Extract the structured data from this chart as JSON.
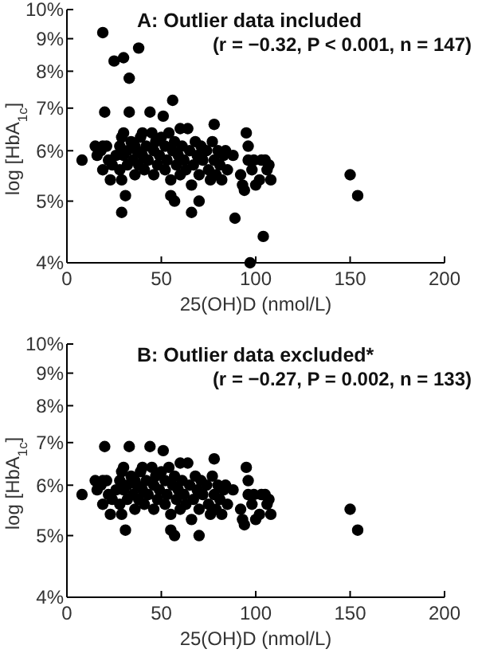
{
  "chart_data": [
    {
      "type": "scatter",
      "title": "A:  Outlier data included",
      "subtitle": "(r = −0.32, P < 0.001, n = 147)",
      "xlabel": "25(OH)D (nmol/L)",
      "ylabel": "log [HbA$_{1c}$]",
      "color": "#000000",
      "marker": "circle",
      "log": "y",
      "xlim": [
        0,
        200
      ],
      "xticks": [
        0,
        50,
        100,
        150,
        200
      ],
      "ylim": [
        4,
        10
      ],
      "yticks": [
        {
          "value": 4,
          "label": "4%"
        },
        {
          "value": 5,
          "label": "5%"
        },
        {
          "value": 6,
          "label": "6%"
        },
        {
          "value": 7,
          "label": "7%"
        },
        {
          "value": 8,
          "label": "8%"
        },
        {
          "value": 9,
          "label": "9%"
        },
        {
          "value": 10,
          "label": "10%"
        }
      ],
      "x": [
        8,
        15,
        16,
        18,
        19,
        19,
        20,
        21,
        22,
        23,
        24,
        26,
        28,
        28,
        29,
        29,
        30,
        30,
        31,
        32,
        32,
        33,
        34,
        35,
        36,
        36,
        37,
        38,
        39,
        40,
        40,
        41,
        42,
        43,
        44,
        45,
        46,
        46,
        47,
        48,
        49,
        50,
        51,
        52,
        52,
        53,
        54,
        55,
        55,
        56,
        57,
        57,
        58,
        59,
        60,
        60,
        61,
        62,
        63,
        64,
        65,
        66,
        67,
        68,
        69,
        70,
        70,
        71,
        72,
        74,
        75,
        76,
        77,
        78,
        78,
        79,
        80,
        81,
        82,
        83,
        84,
        85,
        88,
        92,
        93,
        94,
        95,
        96,
        96,
        98,
        99,
        100,
        102,
        103,
        105,
        106,
        107,
        108,
        150,
        154,
        19,
        25,
        30,
        38,
        33,
        56,
        29,
        66,
        89,
        104,
        97
      ],
      "values": [
        5.8,
        6.1,
        5.9,
        6.0,
        5.6,
        6.1,
        6.9,
        6.1,
        5.8,
        5.4,
        5.7,
        5.9,
        5.6,
        6.1,
        6.3,
        5.4,
        6.4,
        5.9,
        5.1,
        6.0,
        5.7,
        6.9,
        6.2,
        5.8,
        5.5,
        6.1,
        6.0,
        5.7,
        6.3,
        6.4,
        5.9,
        5.6,
        6.1,
        5.8,
        6.9,
        6.4,
        6.0,
        5.5,
        6.2,
        5.7,
        5.9,
        6.3,
        6.8,
        6.1,
        5.6,
        5.8,
        6.4,
        5.1,
        5.4,
        6.0,
        5.0,
        6.2,
        5.7,
        5.9,
        6.5,
        5.5,
        6.1,
        5.8,
        5.6,
        6.5,
        6.0,
        5.3,
        5.7,
        6.2,
        5.9,
        5.0,
        5.5,
        6.1,
        5.8,
        6.0,
        5.6,
        5.4,
        6.2,
        6.6,
        5.8,
        5.5,
        6.0,
        5.7,
        5.4,
        5.9,
        6.0,
        5.6,
        5.9,
        5.5,
        5.3,
        5.2,
        6.4,
        6.1,
        5.8,
        5.6,
        5.8,
        5.3,
        5.4,
        5.8,
        5.8,
        5.6,
        5.7,
        5.4,
        5.5,
        5.1,
        9.2,
        8.3,
        8.4,
        8.7,
        7.8,
        7.2,
        4.8,
        4.8,
        4.7,
        4.4,
        4.0
      ]
    },
    {
      "type": "scatter",
      "title": "B:  Outlier data excluded*",
      "subtitle": "(r = −0.27, P = 0.002, n = 133)",
      "xlabel": "25(OH)D (nmol/L)",
      "ylabel": "log [HbA$_{1c}$]",
      "color": "#000000",
      "marker": "circle",
      "log": "y",
      "xlim": [
        0,
        200
      ],
      "xticks": [
        0,
        50,
        100,
        150,
        200
      ],
      "ylim": [
        4,
        10
      ],
      "yticks": [
        {
          "value": 4,
          "label": "4%"
        },
        {
          "value": 5,
          "label": "5%"
        },
        {
          "value": 6,
          "label": "6%"
        },
        {
          "value": 7,
          "label": "7%"
        },
        {
          "value": 8,
          "label": "8%"
        },
        {
          "value": 9,
          "label": "9%"
        },
        {
          "value": 10,
          "label": "10%"
        }
      ],
      "x": [
        8,
        15,
        16,
        18,
        19,
        19,
        20,
        21,
        22,
        23,
        24,
        26,
        28,
        28,
        29,
        29,
        30,
        30,
        31,
        32,
        32,
        33,
        34,
        35,
        36,
        36,
        37,
        38,
        39,
        40,
        40,
        41,
        42,
        43,
        44,
        45,
        46,
        46,
        47,
        48,
        49,
        50,
        51,
        52,
        52,
        53,
        54,
        55,
        55,
        56,
        57,
        57,
        58,
        59,
        60,
        60,
        61,
        62,
        63,
        64,
        65,
        66,
        67,
        68,
        69,
        70,
        70,
        71,
        72,
        74,
        75,
        76,
        77,
        78,
        78,
        79,
        80,
        81,
        82,
        83,
        84,
        85,
        88,
        92,
        93,
        94,
        95,
        96,
        96,
        98,
        99,
        100,
        102,
        103,
        105,
        106,
        107,
        108,
        150,
        154
      ],
      "values": [
        5.8,
        6.1,
        5.9,
        6.0,
        5.6,
        6.1,
        6.9,
        6.1,
        5.8,
        5.4,
        5.7,
        5.9,
        5.6,
        6.1,
        6.3,
        5.4,
        6.4,
        5.9,
        5.1,
        6.0,
        5.7,
        6.9,
        6.2,
        5.8,
        5.5,
        6.1,
        6.0,
        5.7,
        6.3,
        6.4,
        5.9,
        5.6,
        6.1,
        5.8,
        6.9,
        6.4,
        6.0,
        5.5,
        6.2,
        5.7,
        5.9,
        6.3,
        6.8,
        6.1,
        5.6,
        5.8,
        6.4,
        5.1,
        5.4,
        6.0,
        5.0,
        6.2,
        5.7,
        5.9,
        6.5,
        5.5,
        6.1,
        5.8,
        5.6,
        6.5,
        6.0,
        5.3,
        5.7,
        6.2,
        5.9,
        5.0,
        5.5,
        6.1,
        5.8,
        6.0,
        5.6,
        5.4,
        6.2,
        6.6,
        5.8,
        5.5,
        6.0,
        5.7,
        5.4,
        5.9,
        6.0,
        5.6,
        5.9,
        5.5,
        5.3,
        5.2,
        6.4,
        6.1,
        5.8,
        5.6,
        5.8,
        5.3,
        5.4,
        5.8,
        5.8,
        5.6,
        5.7,
        5.4,
        5.5,
        5.1
      ]
    }
  ]
}
